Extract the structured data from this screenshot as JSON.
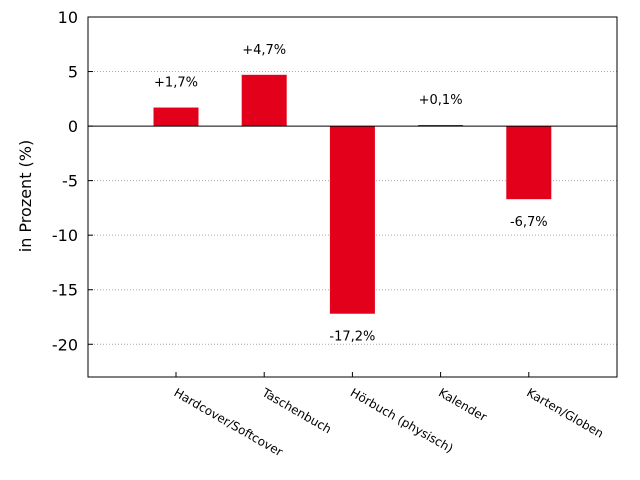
{
  "chart_data": {
    "type": "bar",
    "ylabel": "in Prozent (%)",
    "categories": [
      "Hardcover/Softcover",
      "Taschenbuch",
      "Hörbuch (physisch)",
      "Kalender",
      "Karten/Globen"
    ],
    "values": [
      1.7,
      4.7,
      -17.2,
      0.1,
      -6.7
    ],
    "data_labels": [
      "+1,7%",
      "+4,7%",
      "-17,2%",
      "+0,1%",
      "-6,7%"
    ],
    "ylim": [
      -23,
      10
    ],
    "yticks": [
      10,
      5,
      0,
      -5,
      -10,
      -15,
      -20
    ],
    "ytick_labels": [
      "10",
      "5",
      "0",
      "-5",
      "-10",
      "-15",
      "-20"
    ],
    "bar_color": "#e2001a",
    "grid": "horizontal dotted",
    "legend": "none"
  }
}
